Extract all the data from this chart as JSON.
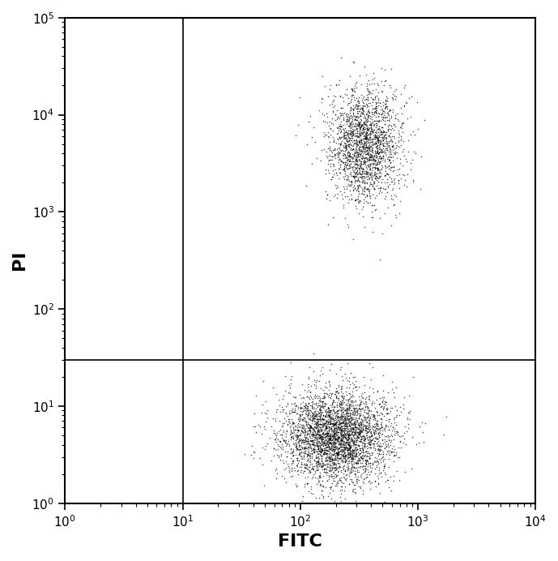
{
  "xlabel": "FITC",
  "ylabel": "PI",
  "xlim": [
    1.0,
    10000.0
  ],
  "ylim": [
    1.0,
    100000.0
  ],
  "xline": 10.0,
  "yline": 30.0,
  "n_points_lower": 3500,
  "n_points_upper": 2000,
  "background_color": "#ffffff",
  "scatter_color": "#000000",
  "scatter_size": 1.2,
  "scatter_alpha": 0.7,
  "border_color": "#000000",
  "seed": 42,
  "figsize": [
    6.89,
    6.92
  ],
  "dpi": 100
}
